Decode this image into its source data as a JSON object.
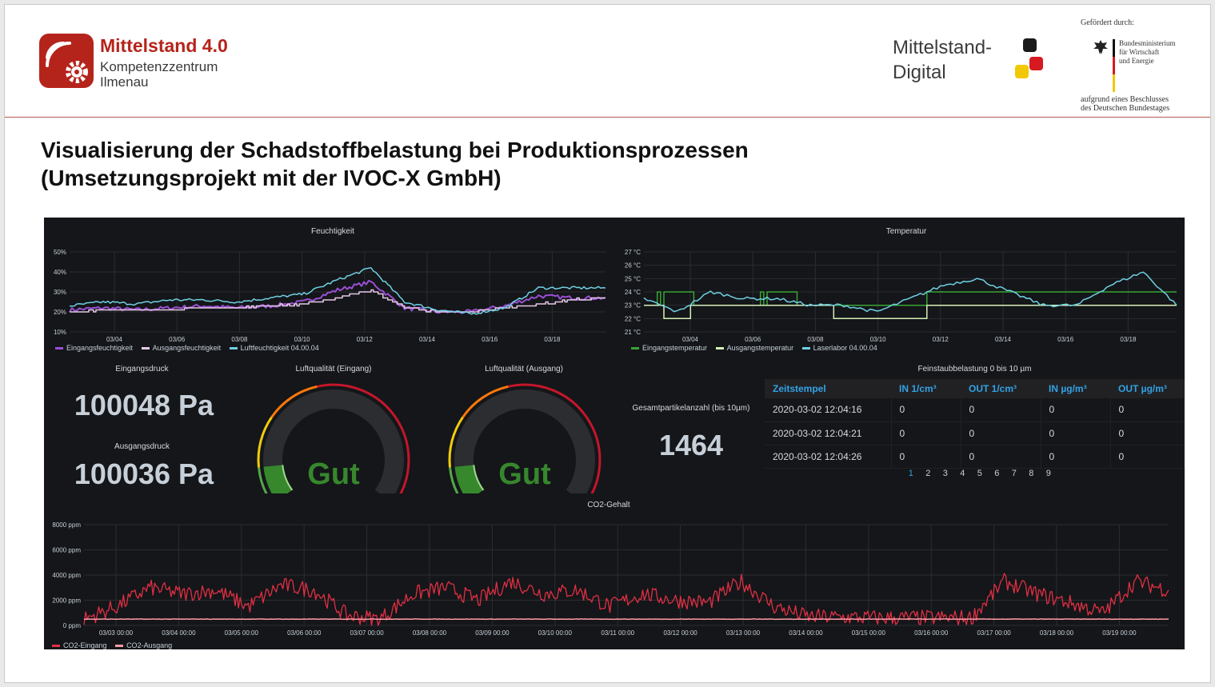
{
  "header": {
    "logo_left": {
      "title": "Mittelstand 4.0",
      "line1": "Kompetenzzentrum",
      "line2": "Ilmenau"
    },
    "logo_right": {
      "line1": "Mittelstand-",
      "line2": "Digital"
    },
    "funding": {
      "label": "Gefördert durch:",
      "ministry": [
        "Bundesministerium",
        "für Wirtschaft",
        "und Energie"
      ],
      "resolution": [
        "aufgrund eines Beschlusses",
        "des Deutschen Bundestages"
      ]
    }
  },
  "title": {
    "line1": "Visualisierung der Schadstoffbelastung bei Produktionsprozessen",
    "line2": "(Umsetzungsprojekt mit der IVOC-X GmbH)"
  },
  "colors": {
    "brand_red": "#b5241b",
    "panel_bg": "#141619",
    "purple": "#9a4fd4",
    "pink": "#e6c8e8",
    "cyan": "#6fd0e3",
    "green": "#3aa335",
    "lightgreen": "#d6f0b8",
    "co2_red": "#e02f44",
    "co2_pink": "#ff9aa6",
    "link_blue": "#33a2e5"
  },
  "dashboard": {
    "feuchtigkeit": {
      "title": "Feuchtigkeit",
      "legend": [
        "Eingangsfeuchtigkeit",
        "Ausgangsfeuchtigkeit",
        "Luftfeuchtigkeit 04.00.04"
      ]
    },
    "temperatur": {
      "title": "Temperatur",
      "legend": [
        "Eingangstemperatur",
        "Ausgangstemperatur",
        "Laserlabor 04.00.04"
      ]
    },
    "eingangsdruck": {
      "title": "Eingangsdruck",
      "value": "100048 Pa"
    },
    "ausgangsdruck": {
      "title": "Ausgangsdruck",
      "value": "100036 Pa"
    },
    "gauge_eingang": {
      "title": "Luftqualität (Eingang)",
      "value": "Gut"
    },
    "gauge_ausgang": {
      "title": "Luftqualität (Ausgang)",
      "value": "Gut"
    },
    "partikel": {
      "title": "Gesamtpartikelanzahl (bis 10µm)",
      "value": "1464"
    },
    "feinstaub": {
      "title": "Feinstaubbelastung 0 bis 10 µm",
      "columns": [
        "Zeitstempel",
        "IN 1/cm³",
        "OUT 1/cm³",
        "IN µg/m³",
        "OUT µg/m³"
      ],
      "rows": [
        [
          "2020-03-02 12:04:16",
          "0",
          "0",
          "0",
          "0"
        ],
        [
          "2020-03-02 12:04:21",
          "0",
          "0",
          "0",
          "0"
        ],
        [
          "2020-03-02 12:04:26",
          "0",
          "0",
          "0",
          "0"
        ]
      ],
      "pages": [
        "1",
        "2",
        "3",
        "4",
        "5",
        "6",
        "7",
        "8",
        "9"
      ],
      "active_page": "1"
    },
    "co2": {
      "title": "CO2-Gehalt",
      "legend": [
        "CO2-Eingang",
        "CO2-Ausgang"
      ]
    }
  },
  "chart_data": [
    {
      "type": "line",
      "title": "Feuchtigkeit",
      "x_ticks": [
        "03/04",
        "03/06",
        "03/08",
        "03/10",
        "03/12",
        "03/14",
        "03/16",
        "03/18"
      ],
      "y_ticks": [
        "10%",
        "20%",
        "30%",
        "40%",
        "50%"
      ],
      "ylim": [
        10,
        50
      ],
      "x": [
        "03/03",
        "03/04",
        "03/05",
        "03/06",
        "03/07",
        "03/08",
        "03/09",
        "03/10",
        "03/11",
        "03/12",
        "03/13",
        "03/14",
        "03/15",
        "03/16",
        "03/17",
        "03/18",
        "03/19"
      ],
      "series": [
        {
          "name": "Eingangsfeuchtigkeit",
          "color": "#9a4fd4",
          "values": [
            21,
            22,
            21,
            22,
            23,
            22,
            23,
            25,
            31,
            35,
            22,
            20,
            20,
            23,
            28,
            27,
            27
          ]
        },
        {
          "name": "Ausgangsfeuchtigkeit",
          "color": "#e6c8e8",
          "values": [
            20,
            21,
            21,
            21,
            22,
            22,
            23,
            24,
            27,
            31,
            22,
            20,
            20,
            22,
            24,
            26,
            27
          ]
        },
        {
          "name": "Luftfeuchtigkeit 04.00.04",
          "color": "#6fd0e3",
          "values": [
            23,
            25,
            24,
            26,
            26,
            25,
            27,
            29,
            36,
            42,
            25,
            21,
            19,
            22,
            32,
            32,
            32
          ]
        }
      ],
      "grid": true,
      "legend": "bottom-left"
    },
    {
      "type": "line",
      "title": "Temperatur",
      "x_ticks": [
        "03/04",
        "03/06",
        "03/08",
        "03/10",
        "03/12",
        "03/14",
        "03/16",
        "03/18"
      ],
      "y_ticks": [
        "21 °C",
        "22 °C",
        "23 °C",
        "24 °C",
        "25 °C",
        "26 °C",
        "27 °C"
      ],
      "ylim": [
        21,
        27
      ],
      "x": [
        "03/03",
        "03/04",
        "03/05",
        "03/06",
        "03/07",
        "03/08",
        "03/09",
        "03/10",
        "03/11",
        "03/12",
        "03/13",
        "03/14",
        "03/15",
        "03/16",
        "03/17",
        "03/18",
        "03/19"
      ],
      "series": [
        {
          "name": "Eingangstemperatur",
          "color": "#3aa335",
          "values": [
            23,
            24,
            23,
            23,
            24,
            23,
            23,
            23,
            23,
            24,
            24,
            24,
            24,
            24,
            24,
            24,
            24
          ]
        },
        {
          "name": "Ausgangstemperatur",
          "color": "#d6f0b8",
          "values": [
            23,
            22,
            23,
            23,
            23,
            23,
            22,
            22,
            22,
            23,
            23,
            23,
            23,
            23,
            23,
            23,
            23
          ]
        },
        {
          "name": "Laserlabor 04.00.04",
          "color": "#6fd0e3",
          "values": [
            23.5,
            22.5,
            24,
            23.5,
            23.5,
            23,
            23,
            22.5,
            23.5,
            24.5,
            25,
            24,
            23,
            23,
            24.5,
            25.5,
            23
          ]
        }
      ],
      "grid": true,
      "legend": "bottom-left"
    },
    {
      "type": "line",
      "title": "CO2-Gehalt",
      "x_ticks": [
        "03/03 00:00",
        "03/04 00:00",
        "03/05 00:00",
        "03/06 00:00",
        "03/07 00:00",
        "03/08 00:00",
        "03/09 00:00",
        "03/10 00:00",
        "03/11 00:00",
        "03/12 00:00",
        "03/13 00:00",
        "03/14 00:00",
        "03/15 00:00",
        "03/16 00:00",
        "03/17 00:00",
        "03/18 00:00",
        "03/19 00:00"
      ],
      "y_ticks": [
        "0 ppm",
        "2000 ppm",
        "4000 ppm",
        "6000 ppm",
        "8000 ppm"
      ],
      "ylim": [
        0,
        8000
      ],
      "x": [
        "03/03 00:00",
        "03/03 12:00",
        "03/04 00:00",
        "03/04 12:00",
        "03/05 00:00",
        "03/05 12:00",
        "03/06 00:00",
        "03/06 12:00",
        "03/07 00:00",
        "03/07 12:00",
        "03/08 00:00",
        "03/08 12:00",
        "03/09 00:00",
        "03/09 12:00",
        "03/10 00:00",
        "03/10 12:00",
        "03/11 00:00",
        "03/11 12:00",
        "03/12 00:00",
        "03/12 12:00",
        "03/13 00:00",
        "03/13 12:00",
        "03/14 00:00",
        "03/14 12:00",
        "03/15 00:00",
        "03/15 12:00",
        "03/16 00:00",
        "03/16 12:00",
        "03/17 00:00",
        "03/17 12:00",
        "03/18 00:00",
        "03/18 12:00",
        "03/19 00:00",
        "03/19 12:00"
      ],
      "series": [
        {
          "name": "CO2-Eingang",
          "color": "#e02f44",
          "values": [
            500,
            1500,
            3000,
            2500,
            2800,
            1500,
            3200,
            2800,
            800,
            500,
            2500,
            3000,
            2000,
            3500,
            2500,
            2800,
            1500,
            2500,
            2000,
            1800,
            3500,
            1500,
            700,
            650,
            600,
            600,
            600,
            600,
            3500,
            2500,
            1800,
            1000,
            3500,
            2800
          ]
        },
        {
          "name": "CO2-Ausgang",
          "color": "#ff9aa6",
          "values": [
            500,
            500,
            500,
            500,
            500,
            500,
            500,
            500,
            500,
            500,
            500,
            500,
            500,
            500,
            500,
            500,
            500,
            500,
            500,
            500,
            500,
            500,
            500,
            500,
            500,
            500,
            500,
            500,
            500,
            500,
            500,
            500,
            500,
            500
          ]
        }
      ],
      "grid": true,
      "legend": "bottom-left"
    },
    {
      "type": "gauge",
      "title": "Luftqualität (Eingang)",
      "value_label": "Gut",
      "fraction": 0.12
    },
    {
      "type": "gauge",
      "title": "Luftqualität (Ausgang)",
      "value_label": "Gut",
      "fraction": 0.12
    }
  ]
}
